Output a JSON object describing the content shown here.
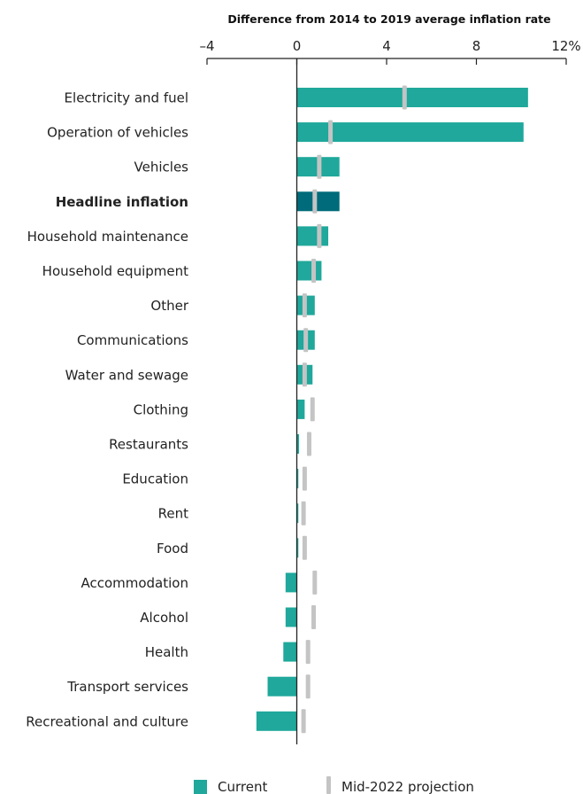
{
  "chart_data": {
    "type": "bar",
    "orientation": "horizontal",
    "title": "Difference from 2014 to 2019 average inflation rate",
    "xlim": [
      -4,
      12
    ],
    "xticks": [
      {
        "value": -4,
        "label": "–4"
      },
      {
        "value": 0,
        "label": "0"
      },
      {
        "value": 4,
        "label": "4"
      },
      {
        "value": 8,
        "label": "8"
      },
      {
        "value": 12,
        "label": "12%"
      }
    ],
    "categories": [
      "Electricity and fuel",
      "Operation of vehicles",
      "Vehicles",
      "Headline inflation",
      "Household maintenance",
      "Household equipment",
      "Other",
      "Communications",
      "Water and sewage",
      "Clothing",
      "Restaurants",
      "Education",
      "Rent",
      "Food",
      "Accommodation",
      "Alcohol",
      "Health",
      "Transport services",
      "Recreational and culture"
    ],
    "highlight_category": "Headline inflation",
    "series": [
      {
        "name": "Current",
        "color": "#1fa89b",
        "highlight_color": "#006b7a",
        "values": [
          10.3,
          10.1,
          1.9,
          1.9,
          1.4,
          1.1,
          0.8,
          0.8,
          0.7,
          0.35,
          0.1,
          0.07,
          0.07,
          0.07,
          -0.5,
          -0.5,
          -0.6,
          -1.3,
          -1.8
        ]
      },
      {
        "name": "Mid-2022 projection",
        "color": "#c4c4c4",
        "values": [
          4.8,
          1.5,
          1.0,
          0.8,
          1.0,
          0.75,
          0.35,
          0.4,
          0.35,
          0.7,
          0.55,
          0.35,
          0.3,
          0.35,
          0.8,
          0.75,
          0.5,
          0.5,
          0.3
        ]
      }
    ],
    "legend_position": "bottom",
    "grid": false
  }
}
